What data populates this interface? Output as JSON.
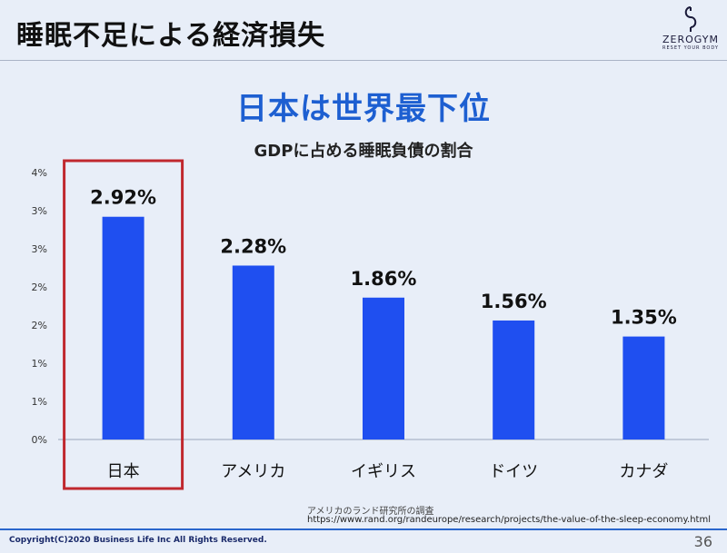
{
  "slide": {
    "title": "睡眠不足による経済損失",
    "headline": "日本は世界最下位",
    "logo_text": "ZEROGYM",
    "logo_tagline": "RESET YOUR BODY",
    "source_label": "アメリカのランド研究所の調査",
    "source_url": "https://www.rand.org/randeurope/research/projects/the-value-of-the-sleep-economy.html",
    "copyright": "Copyright(C)2020 Business Life Inc All Rights Reserved.",
    "page_number": "36"
  },
  "colors": {
    "bar": "#1f4ff0",
    "highlight": "#c0282e",
    "headline": "#1d5fd1"
  },
  "chart_data": {
    "type": "bar",
    "title": "GDPに占める睡眠負債の割合",
    "categories": [
      "日本",
      "アメリカ",
      "イギリス",
      "ドイツ",
      "カナダ"
    ],
    "values": [
      2.92,
      2.28,
      1.86,
      1.56,
      1.35
    ],
    "value_labels": [
      "2.92%",
      "2.28%",
      "1.86%",
      "1.56%",
      "1.35%"
    ],
    "y_ticks": [
      0,
      0.5,
      1,
      1.5,
      2,
      2.5,
      3,
      3.5
    ],
    "y_tick_labels": [
      "0%",
      "1%",
      "1%",
      "2%",
      "2%",
      "3%",
      "3%",
      "4%"
    ],
    "ylim": [
      0,
      3.5
    ],
    "highlighted_category": "日本",
    "grid": false,
    "legend": "none"
  }
}
